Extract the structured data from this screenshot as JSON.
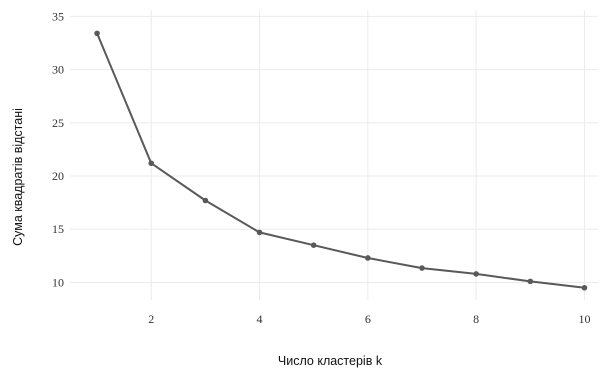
{
  "chart_data": {
    "type": "line",
    "title": "",
    "xlabel": "Число кластерів k",
    "ylabel": "Сума квадратів відстані",
    "x": [
      1,
      2,
      3,
      4,
      5,
      6,
      7,
      8,
      9,
      10
    ],
    "series": [
      {
        "values": [
          33.4,
          21.2,
          17.7,
          14.7,
          13.5,
          12.3,
          11.35,
          10.8,
          10.1,
          9.5
        ],
        "color": "#595959"
      }
    ],
    "xticks": [
      2,
      4,
      6,
      8,
      10
    ],
    "yticks": [
      10,
      15,
      20,
      25,
      30,
      35
    ],
    "xlim": [
      0.5,
      10.25
    ],
    "ylim": [
      8.35,
      35.6
    ],
    "grid": true,
    "legend": "none"
  }
}
